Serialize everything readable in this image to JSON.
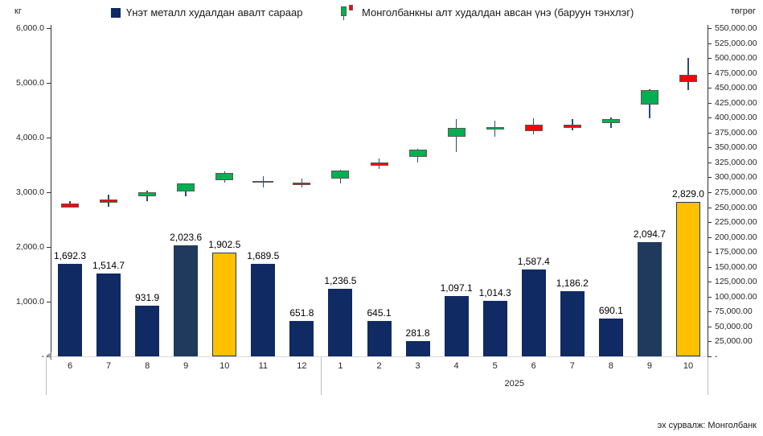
{
  "units": {
    "left": "кг",
    "right": "төгрөг"
  },
  "legend": {
    "bars_label": "Үнэт металл худалдан авалт сараар",
    "candles_label": "Монголбанкны алт худалдан авсан үнэ (баруун тэнхлэг)"
  },
  "source_note": "эх сурвалж: Монголбанк",
  "chart_data": {
    "type": "combo: bar (left axis) + candlestick (right axis)",
    "categories": [
      "6",
      "7",
      "8",
      "9",
      "10",
      "11",
      "12",
      "1",
      "2",
      "3",
      "4",
      "5",
      "6",
      "7",
      "8",
      "9",
      "10"
    ],
    "year_label": {
      "text": "2025",
      "group_start_index": 7,
      "group_end_index": 16
    },
    "left_axis": {
      "unit": "кг",
      "min": 0,
      "max": 6000,
      "step": 1000,
      "tick_labels": [
        "6,000.0",
        "5,000.0",
        "4,000.0",
        "3,000.0",
        "2,000.0",
        "1,000.0",
        "-"
      ]
    },
    "right_axis": {
      "unit": "төгрөг",
      "min": 0,
      "max": 550000,
      "step": 25000,
      "tick_labels": [
        "550,000.00",
        "525,000.00",
        "500,000.00",
        "475,000.00",
        "450,000.00",
        "425,000.00",
        "400,000.00",
        "375,000.00",
        "350,000.00",
        "325,000.00",
        "300,000.00",
        "275,000.00",
        "250,000.00",
        "225,000.00",
        "200,000.00",
        "175,000.00",
        "150,000.00",
        "125,000.00",
        "100,000.00",
        "75,000.00",
        "50,000.00",
        "25,000.00",
        "-"
      ]
    },
    "bars": {
      "name": "Үнэт металл худалдан авалт сараар",
      "axis": "left",
      "values": [
        1692.3,
        1514.7,
        931.9,
        2023.6,
        1902.5,
        1689.5,
        651.8,
        1236.5,
        645.1,
        281.8,
        1097.1,
        1014.3,
        1587.4,
        1186.2,
        690.1,
        2094.7,
        2829.0
      ],
      "labels": [
        "1,692.3",
        "1,514.7",
        "931.9",
        "2,023.6",
        "1,902.5",
        "1,689.5",
        "651.8",
        "1,236.5",
        "645.1",
        "281.8",
        "1,097.1",
        "1,014.3",
        "1,587.4",
        "1,186.2",
        "690.1",
        "2,094.7",
        "2,829.0"
      ],
      "styles": [
        "navy",
        "navy",
        "navy",
        "slate",
        "gold",
        "navy",
        "navy",
        "navy",
        "navy",
        "navy",
        "navy",
        "navy",
        "navy",
        "navy",
        "navy",
        "slate",
        "gold"
      ],
      "colors": {
        "navy": "#102a63",
        "slate": "#1f3a5c",
        "gold": "#ffc000",
        "gold_border": "#1f3864"
      }
    },
    "candles": {
      "name": "Монголбанкны алт худалдан авсан үнэ (баруун тэнхлэг)",
      "axis": "right",
      "colors": {
        "up": "#00b050",
        "down": "#ff0000",
        "doji": "#595959",
        "wick": "#2a4a80",
        "border": "#595959"
      },
      "ohlc_order": [
        "open",
        "high",
        "low",
        "close"
      ],
      "ohlc": [
        [
          256000,
          259500,
          249000,
          250000
        ],
        [
          262500,
          271500,
          251000,
          257000
        ],
        [
          268000,
          278000,
          260000,
          275000
        ],
        [
          277000,
          290000,
          268000,
          289500
        ],
        [
          295000,
          309500,
          291500,
          307000
        ],
        [
          293000,
          301500,
          283500,
          293000
        ],
        [
          291500,
          297500,
          282500,
          287500
        ],
        [
          297500,
          312500,
          289500,
          311500
        ],
        [
          325500,
          332000,
          314000,
          320000
        ],
        [
          334500,
          347500,
          325500,
          346500
        ],
        [
          368000,
          397500,
          342500,
          383000
        ],
        [
          380000,
          395000,
          368000,
          384000
        ],
        [
          388000,
          398500,
          372500,
          377000
        ],
        [
          388000,
          397500,
          379000,
          383500
        ],
        [
          390500,
          400500,
          383500,
          397500
        ],
        [
          422000,
          447000,
          399500,
          446500
        ],
        [
          471500,
          499500,
          446000,
          460000
        ]
      ]
    }
  }
}
